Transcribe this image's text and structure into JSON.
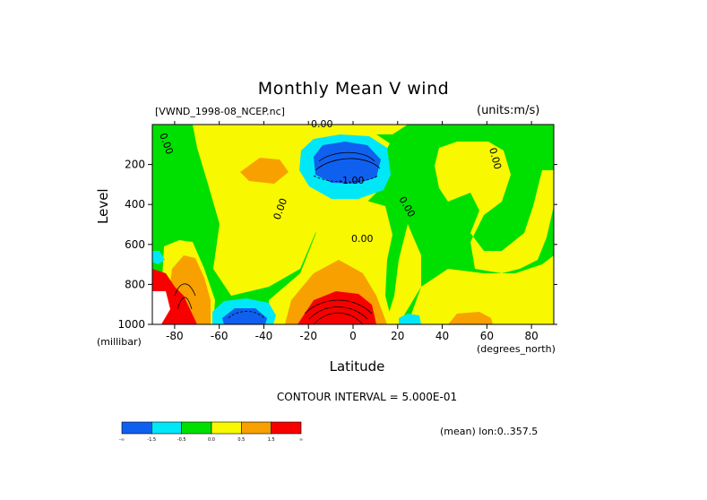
{
  "header": {
    "title": "Monthly Mean V wind",
    "dataset": "[VWND_1998-08_NCEP.nc]",
    "units": "(units:m/s)"
  },
  "axes": {
    "xlabel": "Latitude",
    "xunits": "(degrees_north)",
    "ylabel": "Level",
    "yunits": "(millibar)",
    "xticks": [
      "-80",
      "-60",
      "-40",
      "-20",
      "0",
      "20",
      "40",
      "60",
      "80"
    ],
    "yticks": [
      "200",
      "400",
      "600",
      "800",
      "1000"
    ]
  },
  "footer": {
    "contour_interval": "CONTOUR INTERVAL = 5.000E-01",
    "mean_note": "(mean) lon:0..357.5"
  },
  "contour_labels": [
    "0.00",
    "0.00",
    "0.00",
    "0.00",
    "0.00",
    "0.00",
    "-1.00"
  ],
  "colorbar": {
    "labels": [
      "-∞",
      "-1.5",
      "-0.5",
      "0.0",
      "0.5",
      "1.5",
      "∞"
    ],
    "colors": [
      "#1060f0",
      "#00e8f8",
      "#00e000",
      "#f8f800",
      "#f8a000",
      "#f80000"
    ]
  },
  "chart_data": {
    "type": "heatmap",
    "title": "Monthly Mean V wind",
    "xlabel": "Latitude",
    "ylabel": "Level",
    "x_range": [
      -90,
      90
    ],
    "y_range": [
      0,
      1000
    ],
    "y_reversed": true,
    "units": "m/s",
    "contour_interval": 0.5,
    "levels": [
      -1.5,
      -0.5,
      0.0,
      0.5,
      1.5
    ],
    "features": [
      {
        "kind": "min",
        "lat": -3,
        "level": 180,
        "value": -3.0
      },
      {
        "kind": "min",
        "lat": -53,
        "level": 970,
        "value": -2.0
      },
      {
        "kind": "max",
        "lat": -10,
        "level": 960,
        "value": 3.5
      },
      {
        "kind": "max",
        "lat": -80,
        "level": 950,
        "value": 4.0
      },
      {
        "kind": "max",
        "lat": -38,
        "level": 230,
        "value": 0.8
      },
      {
        "kind": "max",
        "lat": 60,
        "level": 980,
        "value": 0.8
      }
    ]
  }
}
